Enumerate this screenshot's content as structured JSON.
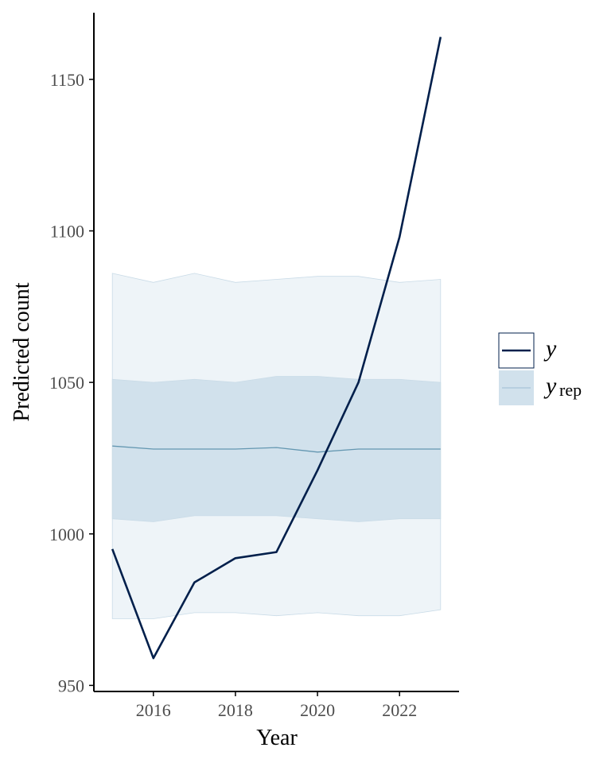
{
  "chart_data": {
    "type": "line",
    "xlabel": "Year",
    "ylabel": "Predicted count",
    "xlim": [
      2014.55,
      2023.45
    ],
    "ylim": [
      948,
      1172
    ],
    "xticks": [
      2016,
      2018,
      2020,
      2022
    ],
    "yticks": [
      950,
      1000,
      1050,
      1100,
      1150
    ],
    "x": [
      2015,
      2016,
      2017,
      2018,
      2019,
      2020,
      2021,
      2022,
      2023
    ],
    "series": [
      {
        "name": "y",
        "kind": "line",
        "color": "#011f4b",
        "values": [
          995,
          959,
          984,
          992,
          994,
          1021,
          1050,
          1098,
          1164
        ]
      },
      {
        "name": "y_rep",
        "kind": "ribbon",
        "median": [
          1029,
          1028,
          1028,
          1028,
          1028.5,
          1027,
          1028,
          1028,
          1028
        ],
        "inner_lower": [
          1005,
          1004,
          1006,
          1006,
          1006,
          1005,
          1004,
          1005,
          1005
        ],
        "inner_upper": [
          1051,
          1050,
          1051,
          1050,
          1052,
          1052,
          1051,
          1051,
          1050
        ],
        "outer_lower": [
          972,
          972,
          974,
          974,
          973,
          974,
          973,
          973,
          975
        ],
        "outer_upper": [
          1086,
          1083,
          1086,
          1083,
          1084,
          1085,
          1085,
          1083,
          1084
        ],
        "median_color": "#6497b1",
        "inner_color": "#d1e1ec",
        "outer_color": "#eef4f8",
        "ribbon_edge_color": "#c9dbe7"
      }
    ],
    "legend": {
      "placement": "right",
      "items": [
        {
          "main": "y",
          "sub": ""
        },
        {
          "main": "y",
          "sub": "rep"
        }
      ]
    }
  }
}
